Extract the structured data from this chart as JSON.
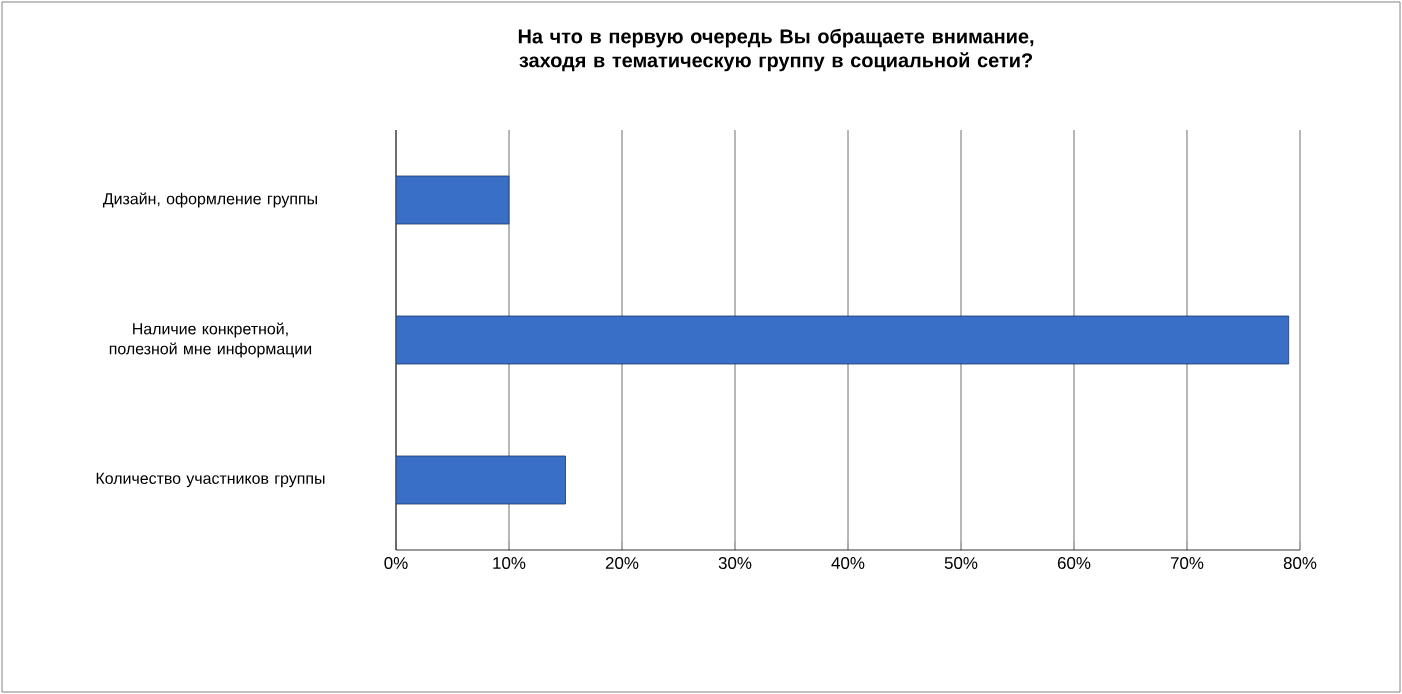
{
  "chart_data": {
    "type": "bar",
    "orientation": "horizontal",
    "title": "На что в первую очередь Вы обращаете внимание, заходя в тематическую группу в социальной сети?",
    "categories": [
      "Дизайн, оформление группы",
      "Наличие конкретной, полезной мне информации",
      "Количество участников группы"
    ],
    "values": [
      10,
      79,
      15
    ],
    "color": "#3a6fc8",
    "xlim": [
      0,
      80
    ],
    "xticks": [
      {
        "value": 0,
        "label": "0%"
      },
      {
        "value": 10,
        "label": "10%"
      },
      {
        "value": 20,
        "label": "20%"
      },
      {
        "value": 30,
        "label": "30%"
      },
      {
        "value": 40,
        "label": "40%"
      },
      {
        "value": 50,
        "label": "50%"
      },
      {
        "value": 60,
        "label": "60%"
      },
      {
        "value": 70,
        "label": "70%"
      },
      {
        "value": 80,
        "label": "80%"
      }
    ],
    "grid": "x"
  }
}
